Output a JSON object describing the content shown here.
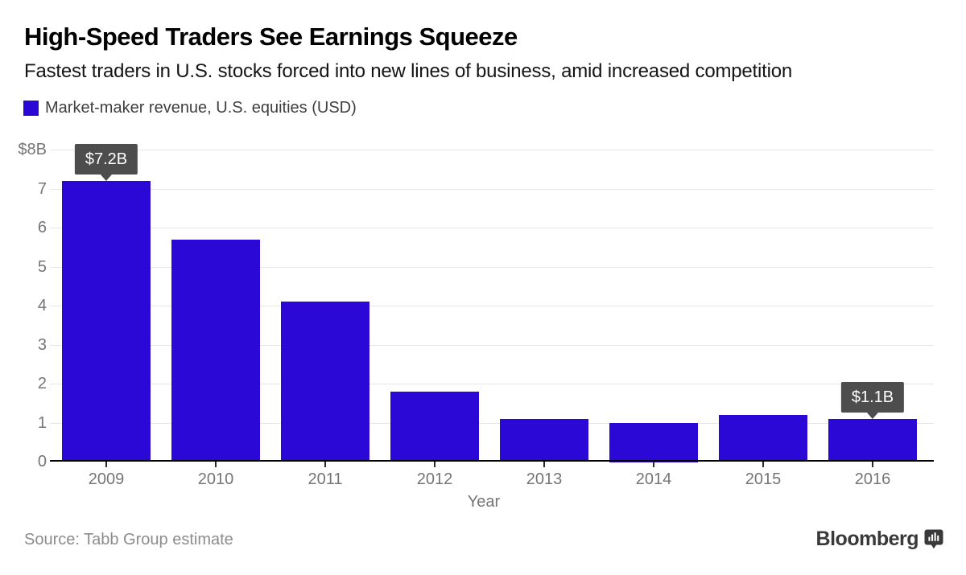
{
  "header": {
    "title": "High-Speed Traders See Earnings Squeeze",
    "subtitle": "Fastest traders in U.S. stocks forced into new lines of business, amid increased competition",
    "legend": {
      "label": "Market-maker revenue, U.S. equities (USD)",
      "swatch_color": "#2b08d5"
    }
  },
  "chart_data": {
    "type": "bar",
    "title": "Market-maker revenue, U.S. equities (USD)",
    "categories": [
      "2009",
      "2010",
      "2011",
      "2012",
      "2013",
      "2014",
      "2015",
      "2016"
    ],
    "values": [
      7.2,
      5.7,
      4.1,
      1.8,
      1.1,
      1.0,
      1.2,
      1.1
    ],
    "xlabel": "Year",
    "ylabel": "",
    "ylim": [
      0,
      8
    ],
    "ytick_labels": [
      "0",
      "1",
      "2",
      "3",
      "4",
      "5",
      "6",
      "7",
      "$8B"
    ],
    "grid": true,
    "legend_position": "top-left",
    "bar_color": "#2b08d5",
    "grid_color": "#e7e7e7",
    "axis_label_color": "#757575",
    "callout_bg_color": "#4d4d4d",
    "annotations": [
      {
        "category": "2009",
        "label": "$7.2B"
      },
      {
        "category": "2016",
        "label": "$1.1B"
      }
    ]
  },
  "footer": {
    "source": "Source: Tabb Group estimate",
    "brand": "Bloomberg"
  }
}
